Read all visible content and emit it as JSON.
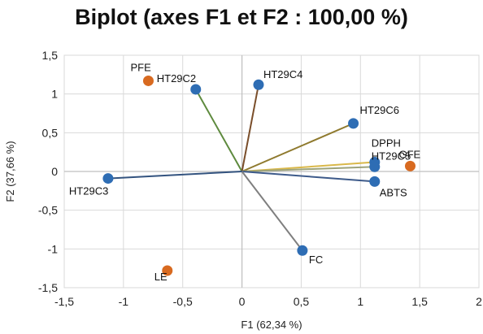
{
  "chart_data": {
    "type": "scatter",
    "subtype": "biplot",
    "title": "Biplot (axes F1 et F2 : 100,00 %)",
    "xlabel": "F1 (62,34 %)",
    "ylabel": "F2 (37,66 %)",
    "xlim": [
      -1.5,
      2
    ],
    "ylim": [
      -1.5,
      1.5
    ],
    "x_ticks": [
      -1.5,
      -1,
      -0.5,
      0,
      0.5,
      1,
      1.5,
      2
    ],
    "x_tick_labels": [
      "-1,5",
      "-1",
      "-0,5",
      "0",
      "0,5",
      "1",
      "1,5",
      "2"
    ],
    "y_ticks": [
      1.5,
      1,
      0.5,
      0,
      -0.5,
      -1,
      -1.5
    ],
    "y_tick_labels": [
      "1,5",
      "1",
      "0,5",
      "0",
      "-0,5",
      "-1",
      "-1,5"
    ],
    "grid": true,
    "legend": "none",
    "colors": {
      "variable_point": "#2E6DB4",
      "observation_point": "#D86A20",
      "grid": "#D9D9D9",
      "axis": "#BFBFBF"
    },
    "variables": [
      {
        "name": "HT29C2",
        "x": -0.39,
        "y": 1.06,
        "line_color": "#5E8A3E"
      },
      {
        "name": "HT29C4",
        "x": 0.14,
        "y": 1.12,
        "line_color": "#7A4E2A"
      },
      {
        "name": "HT29C6",
        "x": 0.94,
        "y": 0.62,
        "line_color": "#8F7A2E"
      },
      {
        "name": "DPPH",
        "x": 1.12,
        "y": 0.12,
        "line_color": "#D9B84A"
      },
      {
        "name": "HT29C5",
        "x": 1.12,
        "y": 0.06,
        "line_color": "#9DA37A"
      },
      {
        "name": "ABTS",
        "x": 1.12,
        "y": -0.13,
        "line_color": "#3D5A8A"
      },
      {
        "name": "FC",
        "x": 0.51,
        "y": -1.02,
        "line_color": "#7F7F7F"
      },
      {
        "name": "HT29C3",
        "x": -1.13,
        "y": -0.09,
        "line_color": "#33537F"
      }
    ],
    "observations": [
      {
        "name": "PFE",
        "x": -0.79,
        "y": 1.17
      },
      {
        "name": "GFE",
        "x": 1.42,
        "y": 0.07
      },
      {
        "name": "LE",
        "x": -0.63,
        "y": -1.28
      }
    ]
  }
}
